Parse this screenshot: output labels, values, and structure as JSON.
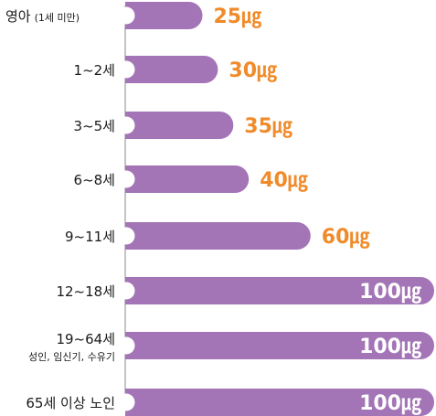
{
  "chart_data": {
    "type": "bar",
    "orientation": "horizontal",
    "categories": [
      "영아",
      "1~2세",
      "3~5세",
      "6~8세",
      "9~11세",
      "12~18세",
      "19~64세",
      "65세 이상 노인"
    ],
    "category_notes": [
      "(1세 미만)",
      "",
      "",
      "",
      "",
      "",
      "성인, 임신기, 수유기",
      ""
    ],
    "values": [
      25,
      30,
      35,
      40,
      60,
      100,
      100,
      100
    ],
    "value_labels": [
      "25㎍",
      "30㎍",
      "35㎍",
      "40㎍",
      "60㎍",
      "100㎍",
      "100㎍",
      "100㎍"
    ],
    "title": "",
    "xlabel": "",
    "ylabel": "",
    "xlim": [
      0,
      100
    ],
    "grid": false,
    "legend": "none",
    "colors": {
      "bar": "#a374b6",
      "value_outside": "#f08b2b",
      "value_inside": "#ffffff",
      "axis": "#888888",
      "text": "#1a1a1a"
    }
  }
}
